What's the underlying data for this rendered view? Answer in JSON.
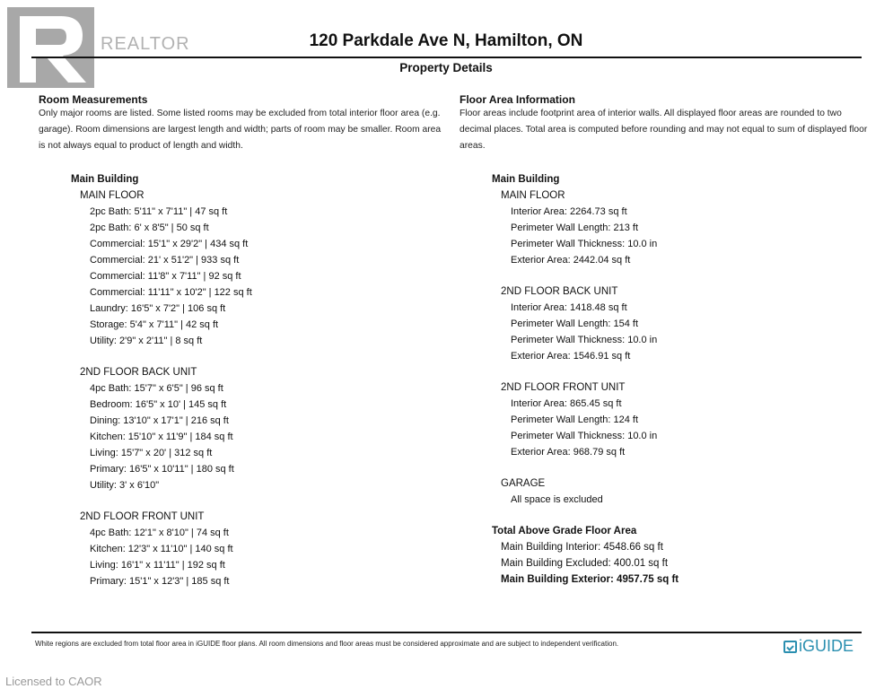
{
  "header": {
    "title": "120 Parkdale Ave N, Hamilton, ON",
    "subtitle": "Property Details"
  },
  "watermark": {
    "realtor_logo": "REALTOR",
    "licensed": "Licensed to CAOR"
  },
  "left": {
    "heading": "Room Measurements",
    "intro": "Only major rooms are listed. Some listed rooms may be excluded from total interior floor area (e.g. garage). Room dimensions are largest length and width; parts of room may be smaller. Room area is not always equal to product of length and width.",
    "building": "Main Building",
    "floors": [
      {
        "name": "MAIN FLOOR",
        "items": [
          "2pc Bath: 5'11\" x 7'11\" | 47 sq ft",
          "2pc Bath: 6' x 8'5\" | 50 sq ft",
          "Commercial: 15'1\" x 29'2\" | 434 sq ft",
          "Commercial: 21' x 51'2\" | 933 sq ft",
          "Commercial: 11'8\" x 7'11\" | 92 sq ft",
          "Commercial: 11'11\" x 10'2\" | 122 sq ft",
          "Laundry: 16'5\" x 7'2\" | 106 sq ft",
          "Storage: 5'4\" x 7'11\" | 42 sq ft",
          "Utility: 2'9\" x 2'11\" | 8 sq ft"
        ]
      },
      {
        "name": "2ND FLOOR BACK UNIT",
        "items": [
          "4pc Bath: 15'7\" x 6'5\" | 96 sq ft",
          "Bedroom: 16'5\" x 10' | 145 sq ft",
          "Dining: 13'10\" x 17'1\" | 216 sq ft",
          "Kitchen: 15'10\" x 11'9\" | 184 sq ft",
          "Living: 15'7\" x 20' | 312 sq ft",
          "Primary: 16'5\" x 10'11\" | 180 sq ft",
          "Utility: 3' x 6'10\""
        ]
      },
      {
        "name": "2ND FLOOR FRONT UNIT",
        "items": [
          "4pc Bath: 12'1\" x 8'10\" | 74 sq ft",
          "Kitchen: 12'3\" x 11'10\" | 140 sq ft",
          "Living: 16'1\" x 11'11\" | 192 sq ft",
          "Primary: 15'1\" x 12'3\" | 185 sq ft"
        ]
      }
    ]
  },
  "right": {
    "heading": "Floor Area Information",
    "intro": "Floor areas include footprint area of interior walls. All displayed floor areas are rounded to two decimal places. Total area is computed before rounding and may not equal to sum of displayed floor areas.",
    "building": "Main Building",
    "floors": [
      {
        "name": "MAIN FLOOR",
        "items": [
          "Interior Area: 2264.73 sq ft",
          "Perimeter Wall Length: 213 ft",
          "Perimeter Wall Thickness: 10.0 in",
          "Exterior Area: 2442.04 sq ft"
        ]
      },
      {
        "name": "2ND FLOOR BACK UNIT",
        "items": [
          "Interior Area: 1418.48 sq ft",
          "Perimeter Wall Length: 154 ft",
          "Perimeter Wall Thickness: 10.0 in",
          "Exterior Area: 1546.91 sq ft"
        ]
      },
      {
        "name": "2ND FLOOR FRONT UNIT",
        "items": [
          "Interior Area: 865.45 sq ft",
          "Perimeter Wall Length: 124 ft",
          "Perimeter Wall Thickness: 10.0 in",
          "Exterior Area: 968.79 sq ft"
        ]
      },
      {
        "name": "GARAGE",
        "items": [
          "All space is excluded"
        ]
      }
    ],
    "total_heading": "Total Above Grade Floor Area",
    "totals": [
      "Main Building Interior: 4548.66 sq ft",
      "Main Building Excluded: 400.01 sq ft",
      "Main Building Exterior: 4957.75 sq ft"
    ]
  },
  "footer": {
    "disclaimer": "White regions are excluded from total floor area in iGUIDE floor plans. All room dimensions and floor areas must be considered approximate and are subject to independent verification.",
    "brand": "iGUIDE",
    "brand_color": "#2a8fb0"
  }
}
